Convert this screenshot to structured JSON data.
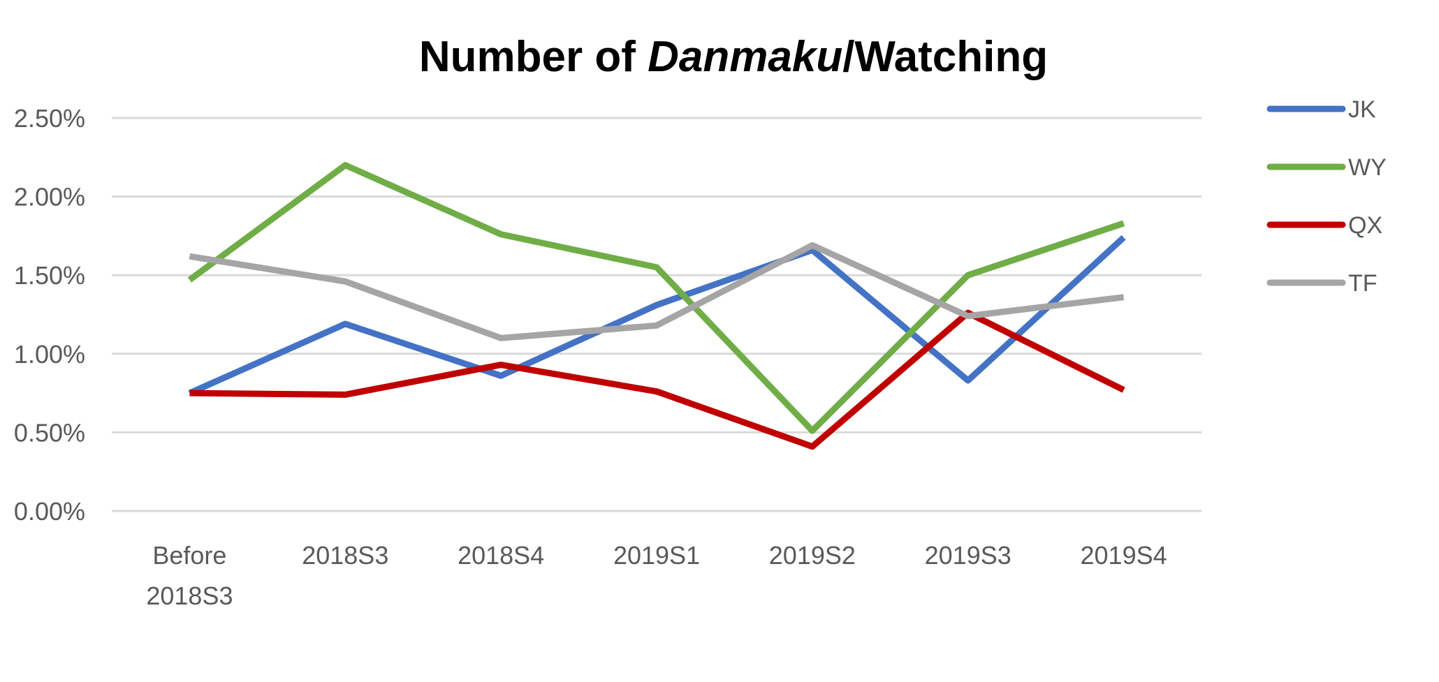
{
  "chart_data": {
    "type": "line",
    "title": {
      "part1": "Number of ",
      "part2": "Danmaku",
      "part3": "/Watching"
    },
    "xlabel": "",
    "ylabel": "",
    "categories": [
      "Before 2018S3",
      "2018S3",
      "2018S4",
      "2019S1",
      "2019S2",
      "2019S3",
      "2019S4"
    ],
    "category_lines": [
      [
        "Before",
        "2018S3"
      ],
      [
        "2018S3"
      ],
      [
        "2018S4"
      ],
      [
        "2019S1"
      ],
      [
        "2019S2"
      ],
      [
        "2019S3"
      ],
      [
        "2019S4"
      ]
    ],
    "y_ticks": [
      "0.00%",
      "0.50%",
      "1.00%",
      "1.50%",
      "2.00%",
      "2.50%"
    ],
    "y_tick_values": [
      0,
      0.5,
      1.0,
      1.5,
      2.0,
      2.5
    ],
    "ylim": [
      0,
      2.5
    ],
    "y_unit": "%",
    "grid": true,
    "legend_position": "right",
    "series": [
      {
        "name": "JK",
        "color": "#4472C4",
        "values": [
          0.75,
          1.19,
          0.86,
          1.31,
          1.66,
          0.83,
          1.74
        ]
      },
      {
        "name": "WY",
        "color": "#70AD47",
        "values": [
          1.47,
          2.2,
          1.76,
          1.55,
          0.51,
          1.5,
          1.83
        ]
      },
      {
        "name": "QX",
        "color": "#C00000",
        "values": [
          0.75,
          0.74,
          0.93,
          0.76,
          0.41,
          1.26,
          0.77
        ]
      },
      {
        "name": "TF",
        "color": "#A5A5A5",
        "values": [
          1.62,
          1.46,
          1.1,
          1.18,
          1.69,
          1.24,
          1.36
        ]
      }
    ]
  }
}
